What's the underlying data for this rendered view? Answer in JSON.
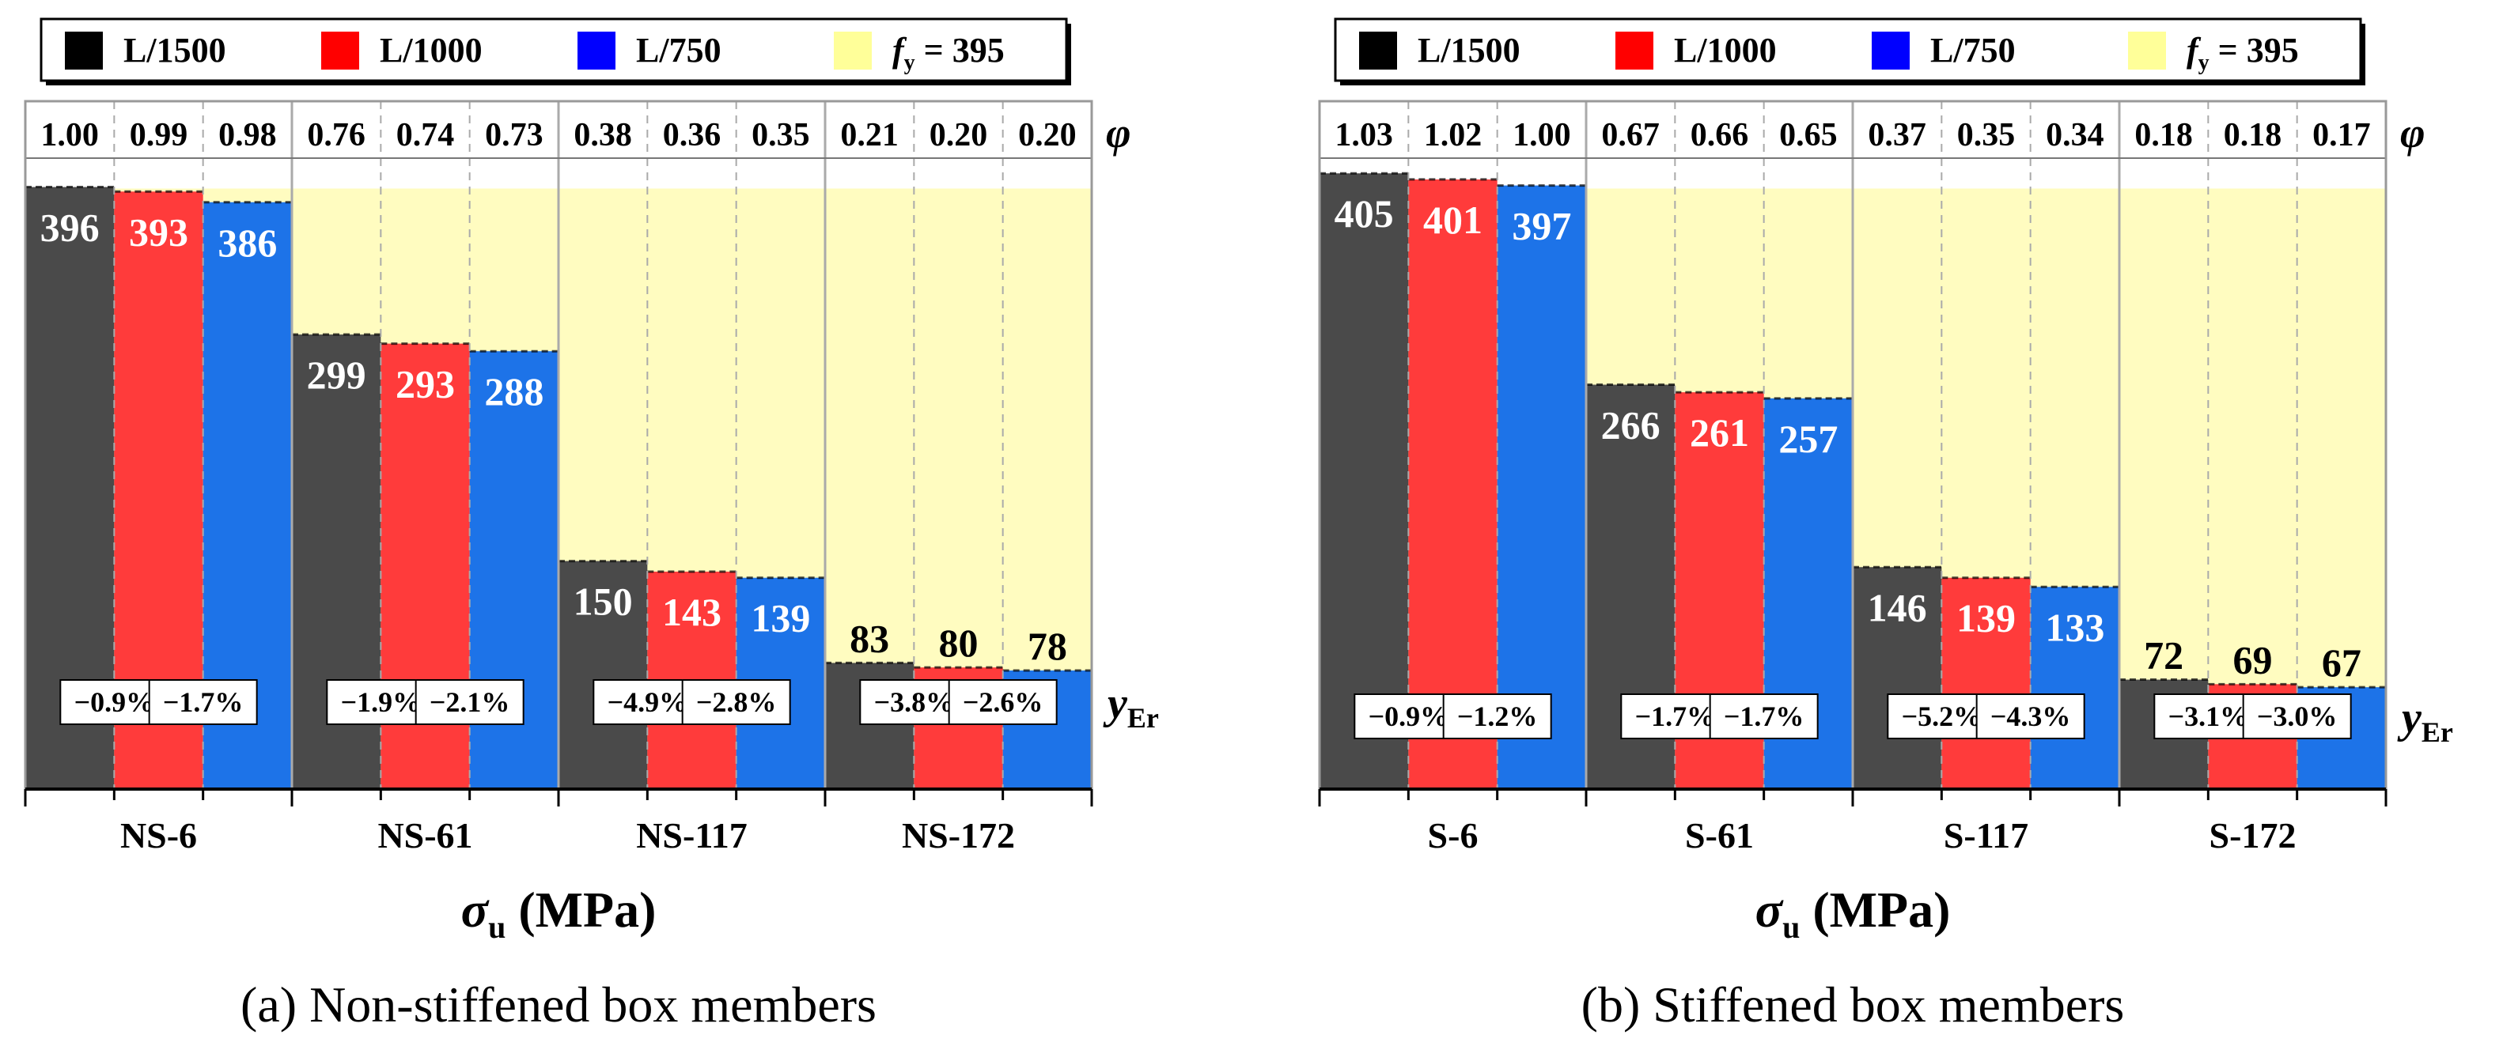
{
  "legend": {
    "items": [
      {
        "label": "L/1500",
        "color": "#000000"
      },
      {
        "label": "L/1000",
        "color": "#ff0000"
      },
      {
        "label": "L/750",
        "color": "#0000ff"
      },
      {
        "label": "f",
        "sub": "y",
        "rest": " = 395",
        "color": "#ffff99"
      }
    ]
  },
  "side_labels": {
    "phi": "φ",
    "yer_main": "y",
    "yer_sub": "Er"
  },
  "colors": {
    "bar_fills": [
      "#4a4a4a",
      "#ff3b3b",
      "#1d73e8"
    ],
    "band": "#fffcc0",
    "gridline": "#aaaaaa"
  },
  "chart_data": [
    {
      "type": "bar",
      "title": "",
      "caption": "(a) Non-stiffened box members",
      "xlabel": "σ",
      "xlabel_sub": "u",
      "xlabel_rest": " (MPa)",
      "ylim": [
        0,
        415
      ],
      "fy": 395,
      "series_names": [
        "L/1500",
        "L/1000",
        "L/750"
      ],
      "categories": [
        "NS-6",
        "NS-61",
        "NS-117",
        "NS-172"
      ],
      "values": [
        [
          396,
          393,
          386
        ],
        [
          299,
          293,
          288
        ],
        [
          150,
          143,
          139
        ],
        [
          83,
          80,
          78
        ]
      ],
      "value_labels": [
        [
          "396",
          "393",
          "386"
        ],
        [
          "299",
          "293",
          "288"
        ],
        [
          "150",
          "143",
          "139"
        ],
        [
          "83",
          "80",
          "78"
        ]
      ],
      "phi": [
        [
          "1.00",
          "0.99",
          "0.98"
        ],
        [
          "0.76",
          "0.74",
          "0.73"
        ],
        [
          "0.38",
          "0.36",
          "0.35"
        ],
        [
          "0.21",
          "0.20",
          "0.20"
        ]
      ],
      "errors": [
        [
          "−0.9%",
          "−1.7%"
        ],
        [
          "−1.9%",
          "−2.1%"
        ],
        [
          "−4.9%",
          "−2.8%"
        ],
        [
          "−3.8%",
          "−2.6%"
        ]
      ]
    },
    {
      "type": "bar",
      "title": "",
      "caption": "(b) Stiffened box members",
      "xlabel": "σ",
      "xlabel_sub": "u",
      "xlabel_rest": " (MPa)",
      "ylim": [
        0,
        415
      ],
      "fy": 395,
      "series_names": [
        "L/1500",
        "L/1000",
        "L/750"
      ],
      "categories": [
        "S-6",
        "S-61",
        "S-117",
        "S-172"
      ],
      "values": [
        [
          405,
          401,
          397
        ],
        [
          266,
          261,
          257
        ],
        [
          146,
          139,
          133
        ],
        [
          72,
          69,
          67
        ]
      ],
      "value_labels": [
        [
          "405",
          "401",
          "397"
        ],
        [
          "266",
          "261",
          "257"
        ],
        [
          "146",
          "139",
          "133"
        ],
        [
          "72",
          "69",
          "67"
        ]
      ],
      "phi": [
        [
          "1.03",
          "1.02",
          "1.00"
        ],
        [
          "0.67",
          "0.66",
          "0.65"
        ],
        [
          "0.37",
          "0.35",
          "0.34"
        ],
        [
          "0.18",
          "0.18",
          "0.17"
        ]
      ],
      "errors": [
        [
          "−0.9%",
          "−1.2%"
        ],
        [
          "−1.7%",
          "−1.7%"
        ],
        [
          "−5.2%",
          "−4.3%"
        ],
        [
          "−3.1%",
          "−3.0%"
        ]
      ]
    }
  ]
}
